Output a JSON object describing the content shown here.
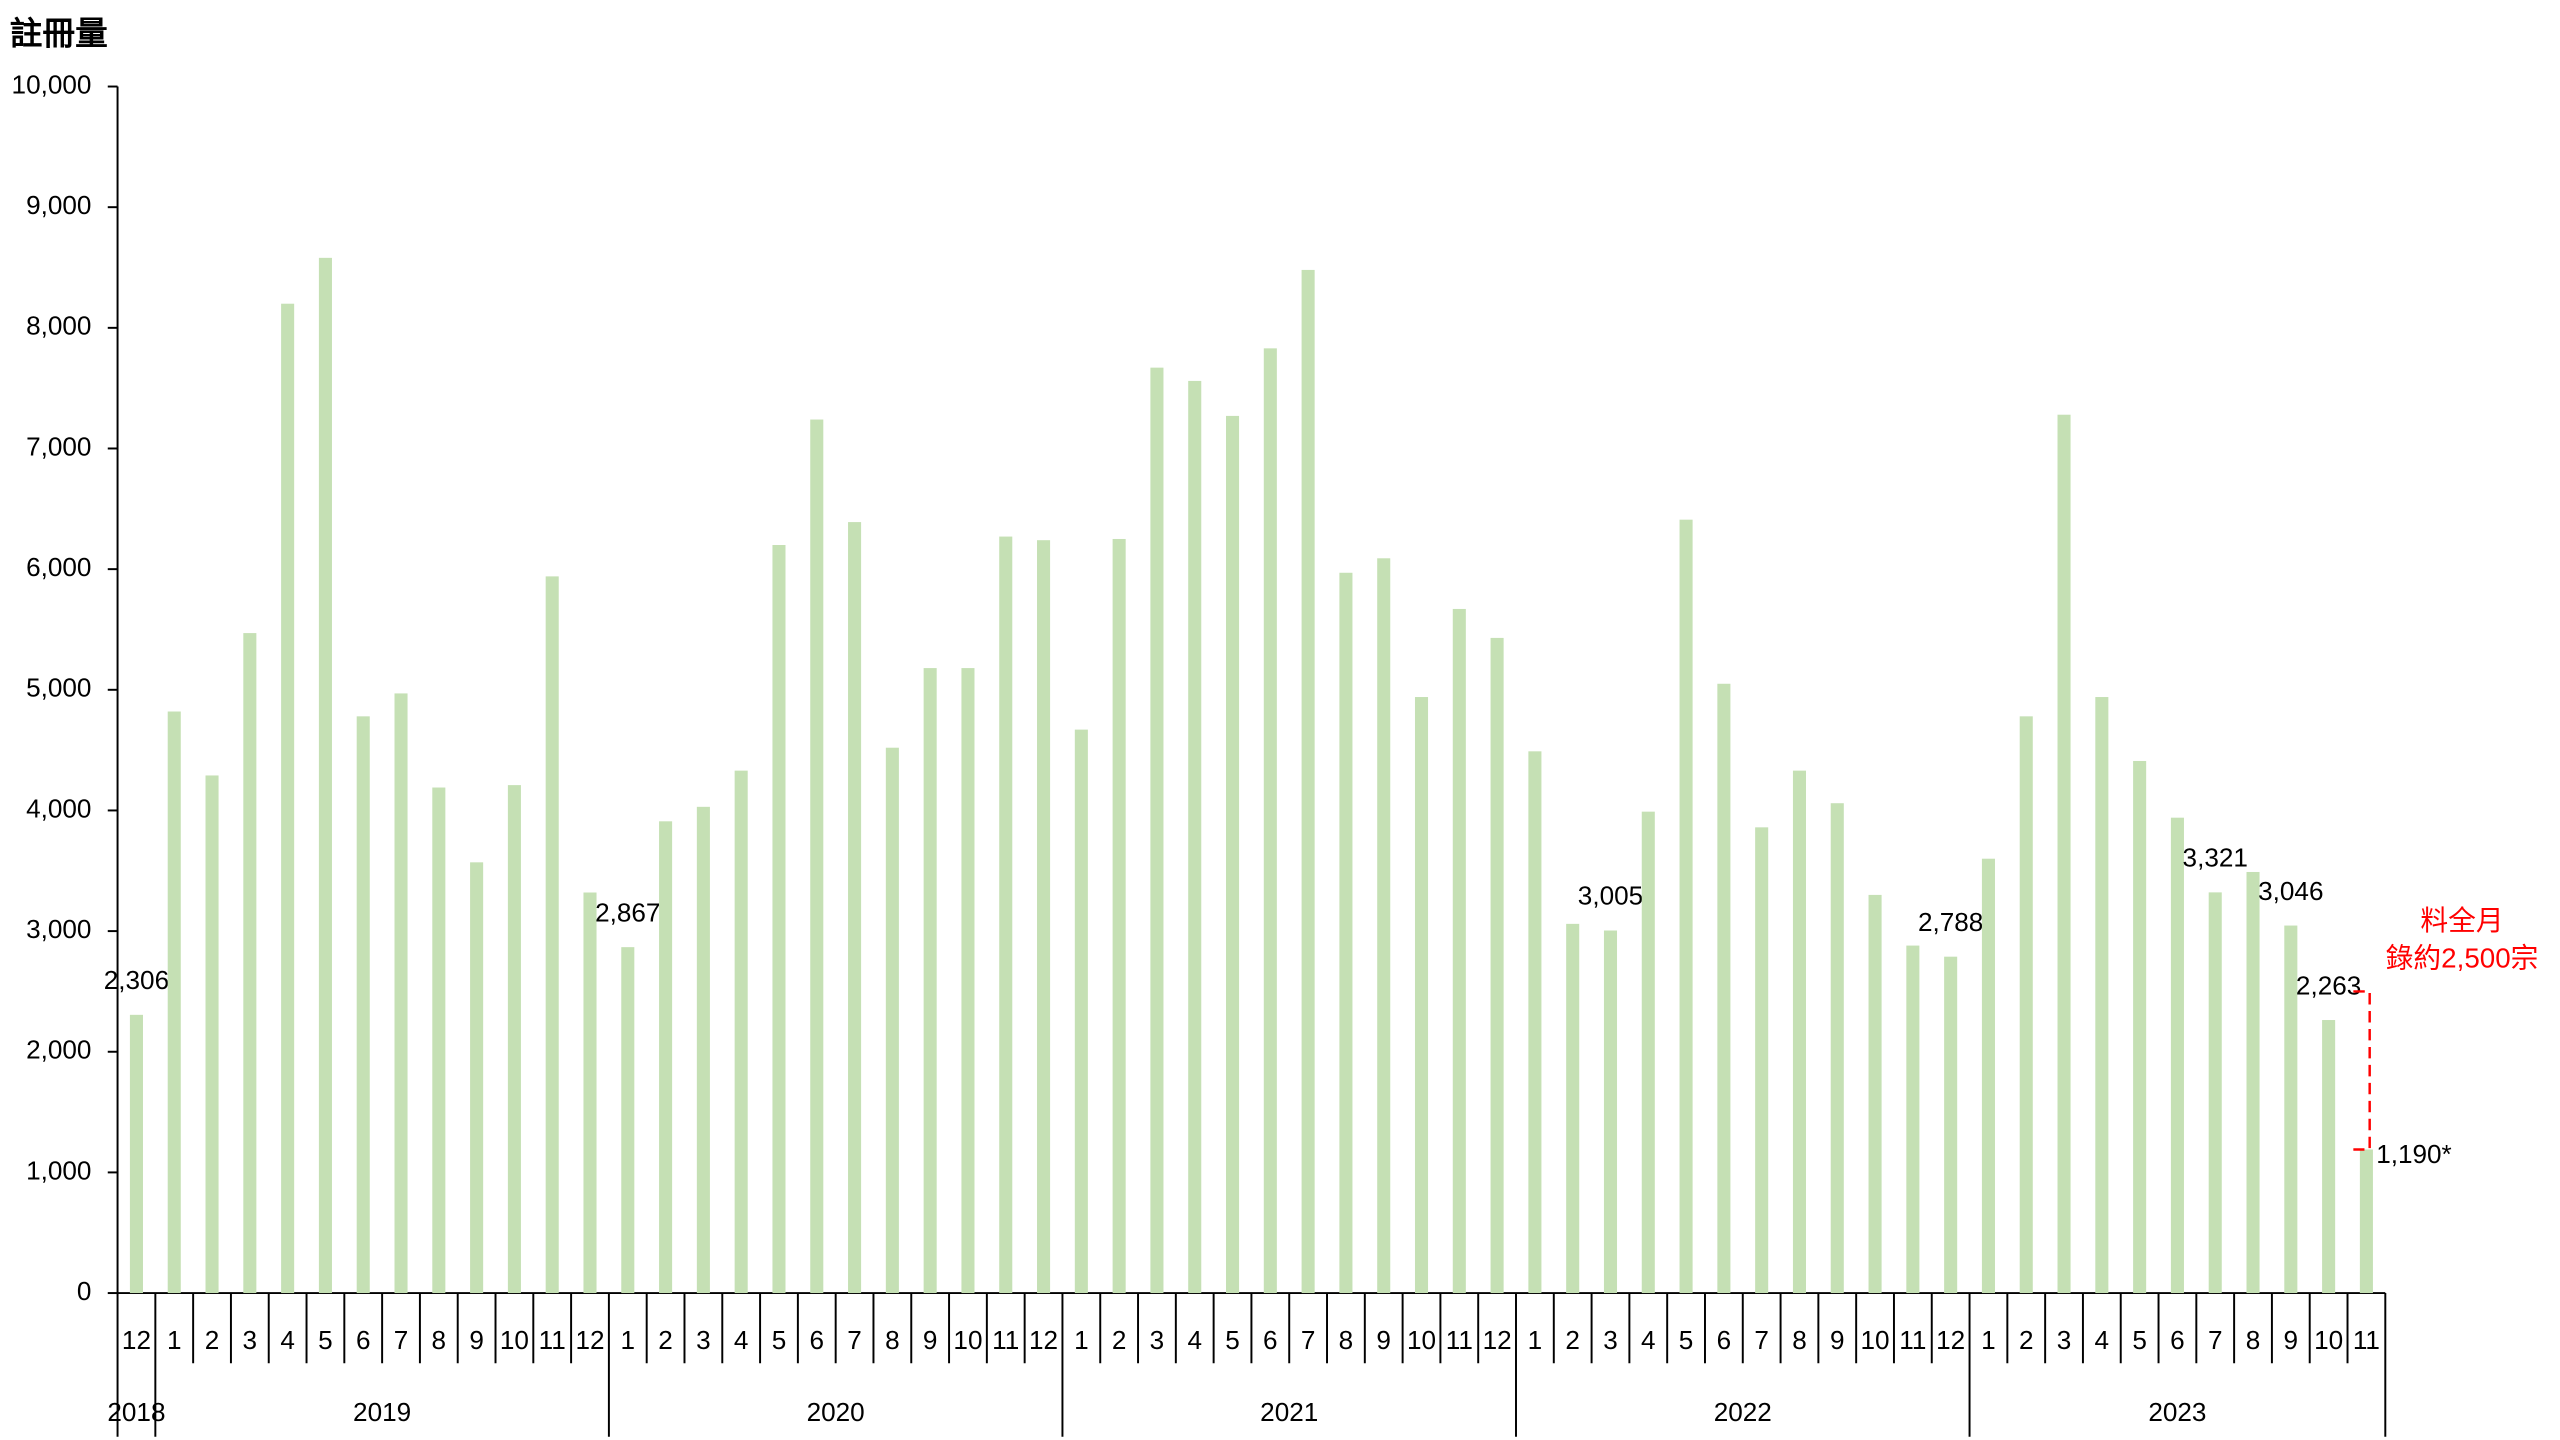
{
  "chart_data": {
    "type": "bar",
    "y_label": "註冊量",
    "color": "#c5e0b4",
    "categories": [
      "12",
      "1",
      "2",
      "3",
      "4",
      "5",
      "6",
      "7",
      "8",
      "9",
      "10",
      "11",
      "12",
      "1",
      "2",
      "3",
      "4",
      "5",
      "6",
      "7",
      "8",
      "9",
      "10",
      "11",
      "12",
      "1",
      "2",
      "3",
      "4",
      "5",
      "6",
      "7",
      "8",
      "9",
      "10",
      "11",
      "12",
      "1",
      "2",
      "3",
      "4",
      "5",
      "6",
      "7",
      "8",
      "9",
      "10",
      "11",
      "12",
      "1",
      "2",
      "3",
      "4",
      "5",
      "6",
      "7",
      "8",
      "9",
      "10",
      "11"
    ],
    "years": [
      "2018",
      "2019",
      "2020",
      "2021",
      "2022",
      "2023"
    ],
    "values": [
      2306,
      4820,
      4290,
      5470,
      8200,
      8580,
      4780,
      4970,
      4190,
      3570,
      4210,
      5940,
      3320,
      2867,
      3910,
      4030,
      4330,
      6200,
      7240,
      6390,
      4520,
      5180,
      5180,
      6270,
      6240,
      4670,
      6250,
      7670,
      7560,
      7270,
      7830,
      8480,
      5970,
      6090,
      4940,
      5670,
      5430,
      4490,
      3060,
      3005,
      3990,
      6410,
      5050,
      3860,
      4330,
      4060,
      3300,
      2880,
      2788,
      3600,
      4780,
      7280,
      4940,
      4410,
      3940,
      3321,
      3490,
      3046,
      2263,
      1190
    ],
    "value_labels": [
      "2,306",
      null,
      null,
      null,
      null,
      null,
      null,
      null,
      null,
      null,
      null,
      null,
      null,
      "2,867",
      null,
      null,
      null,
      null,
      null,
      null,
      null,
      null,
      null,
      null,
      null,
      null,
      null,
      null,
      null,
      null,
      null,
      null,
      null,
      null,
      null,
      null,
      null,
      null,
      null,
      "3,005",
      null,
      null,
      null,
      null,
      null,
      null,
      null,
      null,
      "2,788",
      null,
      null,
      null,
      null,
      null,
      null,
      "3,321",
      null,
      "3,046",
      "2,263",
      "1,190*"
    ],
    "ylim": [
      0,
      10000
    ],
    "yticks": [
      0,
      {
        "value": 1000,
        "label": "1,000"
      },
      {
        "value": 2000,
        "label": "2,000"
      },
      {
        "value": 3000,
        "label": "3,000"
      },
      {
        "value": 4000,
        "label": "4,000"
      },
      {
        "value": 5000,
        "label": "5,000"
      },
      {
        "value": 6000,
        "label": "6,000"
      },
      {
        "value": 7000,
        "label": "7,000"
      },
      {
        "value": 8000,
        "label": "8,000"
      },
      {
        "value": 9000,
        "label": "9,000"
      },
      {
        "value": 10000,
        "label": "10,000"
      }
    ],
    "annotation": {
      "lines": [
        "料全月",
        "錄約2,500宗"
      ],
      "value": 2500,
      "color": "#ff0000"
    }
  }
}
